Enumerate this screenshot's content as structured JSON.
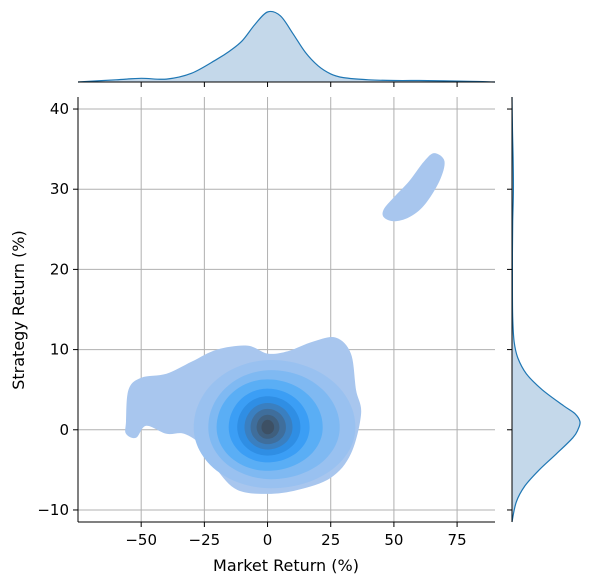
{
  "chart_data": {
    "type": "scatter",
    "subtype": "joint-kde",
    "xlabel": "Market Return (%)",
    "ylabel": "Strategy Return (%)",
    "xlim": [
      -75,
      90
    ],
    "ylim": [
      -11.5,
      41.5
    ],
    "xticks": [
      -50,
      -25,
      0,
      25,
      50,
      75
    ],
    "xtick_labels": [
      "−50",
      "−25",
      "0",
      "25",
      "50",
      "75"
    ],
    "yticks": [
      -10,
      0,
      10,
      20,
      30,
      40
    ],
    "ytick_labels": [
      "−10",
      "0",
      "10",
      "20",
      "30",
      "40"
    ],
    "grid": true,
    "colors": {
      "joint_fill": [
        "#a8c6ee",
        "#99c1f0",
        "#7fb9f2",
        "#5aaef5",
        "#3b9ef5",
        "#2f8ee4",
        "#3a7fc0",
        "#3f6e9c",
        "#3f5f7e",
        "#3d5064"
      ],
      "marginal_line": "#1f77b4",
      "marginal_fill": "#c4d8ea",
      "grid": "#b0b0b0"
    },
    "joint_density_modes": [
      {
        "x": 0,
        "y": 0,
        "weight": "highest"
      },
      {
        "x": -50,
        "y": 1,
        "weight": "low"
      },
      {
        "x": 60,
        "y": 30,
        "weight": "low"
      }
    ],
    "marginal_x": {
      "x": [
        -75,
        -60,
        -50,
        -40,
        -30,
        -20,
        -15,
        -10,
        -5,
        0,
        5,
        10,
        15,
        20,
        25,
        30,
        40,
        50,
        60,
        70,
        80,
        90
      ],
      "density": [
        0.0,
        0.03,
        0.05,
        0.04,
        0.12,
        0.31,
        0.42,
        0.56,
        0.78,
        0.95,
        0.9,
        0.66,
        0.4,
        0.22,
        0.11,
        0.06,
        0.03,
        0.02,
        0.02,
        0.015,
        0.01,
        0.0
      ]
    },
    "marginal_y": {
      "y": [
        -11.5,
        -9,
        -7,
        -5,
        -3,
        -1,
        0,
        1,
        2,
        3,
        5,
        7,
        9,
        11,
        14,
        18,
        22,
        26,
        30,
        34,
        38,
        41.5
      ],
      "density": [
        0.0,
        0.06,
        0.18,
        0.38,
        0.62,
        0.85,
        0.92,
        0.95,
        0.88,
        0.72,
        0.42,
        0.2,
        0.08,
        0.03,
        0.01,
        0.005,
        0.005,
        0.01,
        0.02,
        0.015,
        0.005,
        0.0
      ]
    }
  }
}
